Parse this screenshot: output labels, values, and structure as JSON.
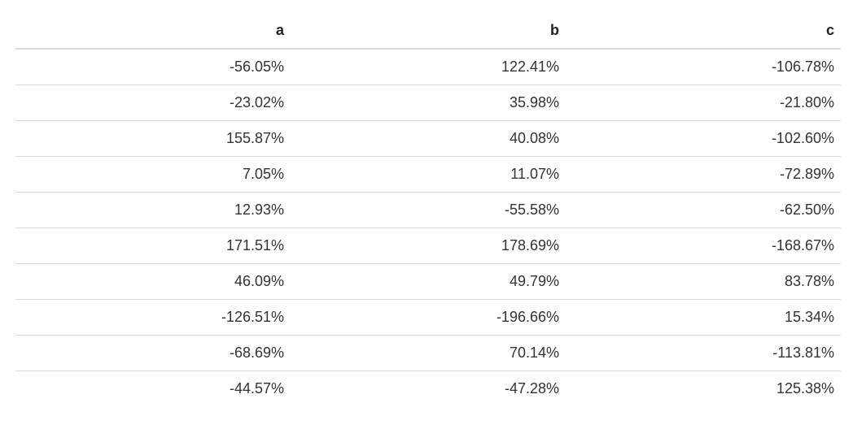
{
  "table": {
    "columns": [
      "a",
      "b",
      "c"
    ],
    "rows": [
      [
        "-56.05%",
        "122.41%",
        "-106.78%"
      ],
      [
        "-23.02%",
        "35.98%",
        "-21.80%"
      ],
      [
        "155.87%",
        "40.08%",
        "-102.60%"
      ],
      [
        "7.05%",
        "11.07%",
        "-72.89%"
      ],
      [
        "12.93%",
        "-55.58%",
        "-62.50%"
      ],
      [
        "171.51%",
        "178.69%",
        "-168.67%"
      ],
      [
        "46.09%",
        "49.79%",
        "83.78%"
      ],
      [
        "-126.51%",
        "-196.66%",
        "15.34%"
      ],
      [
        "-68.69%",
        "70.14%",
        "-113.81%"
      ],
      [
        "-44.57%",
        "-47.28%",
        "125.38%"
      ]
    ]
  }
}
